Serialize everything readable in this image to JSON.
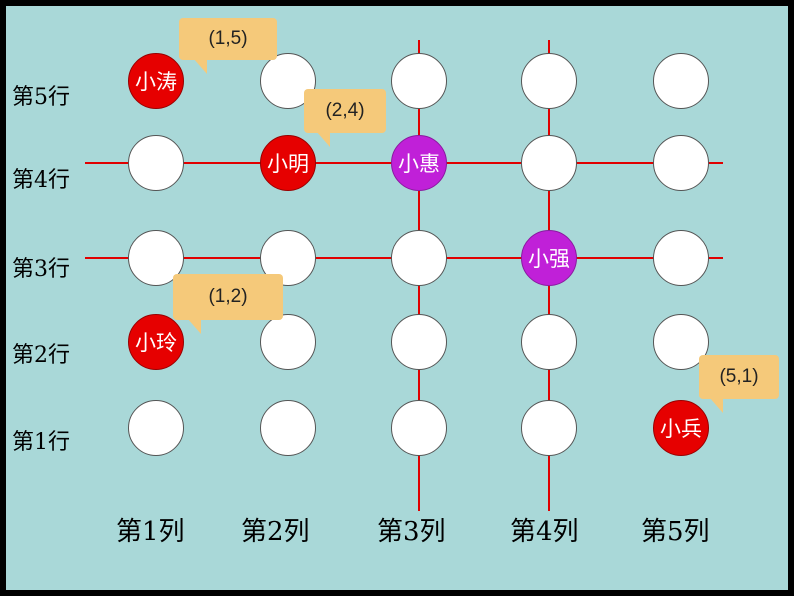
{
  "rows": [
    {
      "label": "第5行",
      "row": 5
    },
    {
      "label": "第4行",
      "row": 4
    },
    {
      "label": "第3行",
      "row": 3
    },
    {
      "label": "第2行",
      "row": 2
    },
    {
      "label": "第1行",
      "row": 1
    }
  ],
  "columns": [
    {
      "label": "第1列",
      "col": 1
    },
    {
      "label": "第2列",
      "col": 2
    },
    {
      "label": "第3列",
      "col": 3
    },
    {
      "label": "第4列",
      "col": 4
    },
    {
      "label": "第5列",
      "col": 5
    }
  ],
  "students": [
    {
      "name": "小涛",
      "col": 1,
      "row": 5,
      "color": "red",
      "coord": "(1,5)"
    },
    {
      "name": "小明",
      "col": 2,
      "row": 4,
      "color": "red",
      "coord": "(2,4)"
    },
    {
      "name": "小惠",
      "col": 3,
      "row": 4,
      "color": "purple"
    },
    {
      "name": "小强",
      "col": 4,
      "row": 3,
      "color": "purple"
    },
    {
      "name": "小玲",
      "col": 1,
      "row": 2,
      "color": "red",
      "coord": "(1,2)"
    },
    {
      "name": "小兵",
      "col": 5,
      "row": 1,
      "color": "red",
      "coord": "(5,1)"
    }
  ],
  "guide_lines": {
    "horizontal_rows": [
      4,
      3
    ],
    "vertical_cols": [
      3,
      4
    ],
    "color": "#e00000"
  },
  "colors": {
    "background": "#a9d8d8",
    "empty_seat": "#ffffff",
    "red_seat": "#e60000",
    "purple_seat": "#c020d8",
    "bubble": "#f5c97a"
  }
}
